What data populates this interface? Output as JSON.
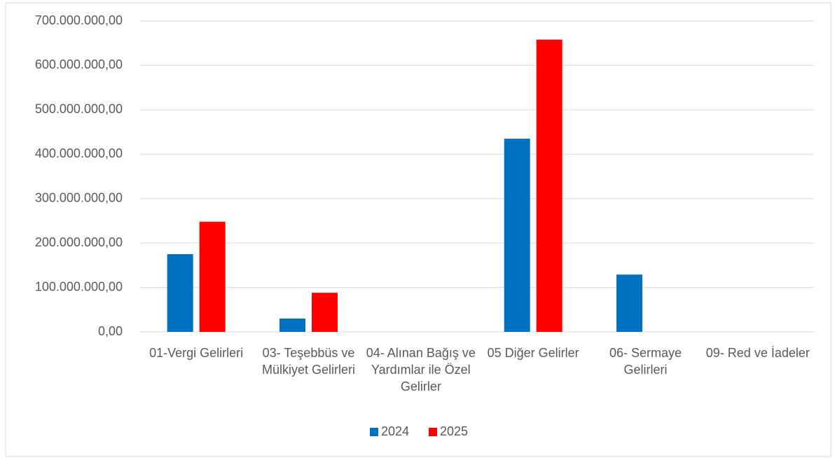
{
  "chart_data": {
    "type": "bar",
    "categories": [
      "01-Vergi Gelirleri",
      "03- Teşebbüs ve Mülkiyet Gelirleri",
      "04- Alınan Bağış ve Yardımlar ile Özel Gelirler",
      "05 Diğer Gelirler",
      "06- Sermaye Gelirleri",
      "09- Red ve İadeler"
    ],
    "series": [
      {
        "name": "2024",
        "color": "#0070c0",
        "values": [
          175000000,
          30000000,
          0,
          435000000,
          129000000,
          0
        ]
      },
      {
        "name": "2025",
        "color": "#ff0000",
        "values": [
          248000000,
          88000000,
          0,
          658000000,
          0,
          0
        ]
      }
    ],
    "ylim": [
      0,
      700000000
    ],
    "yticks": [
      {
        "value": 0,
        "label": "0,00"
      },
      {
        "value": 100000000,
        "label": "100.000.000,00"
      },
      {
        "value": 200000000,
        "label": "200.000.000,00"
      },
      {
        "value": 300000000,
        "label": "300.000.000,00"
      },
      {
        "value": 400000000,
        "label": "400.000.000,00"
      },
      {
        "value": 500000000,
        "label": "500.000.000,00"
      },
      {
        "value": 600000000,
        "label": "600.000.000,00"
      },
      {
        "value": 700000000,
        "label": "700.000.000,00"
      }
    ],
    "grid": true,
    "legend": "bottom"
  }
}
